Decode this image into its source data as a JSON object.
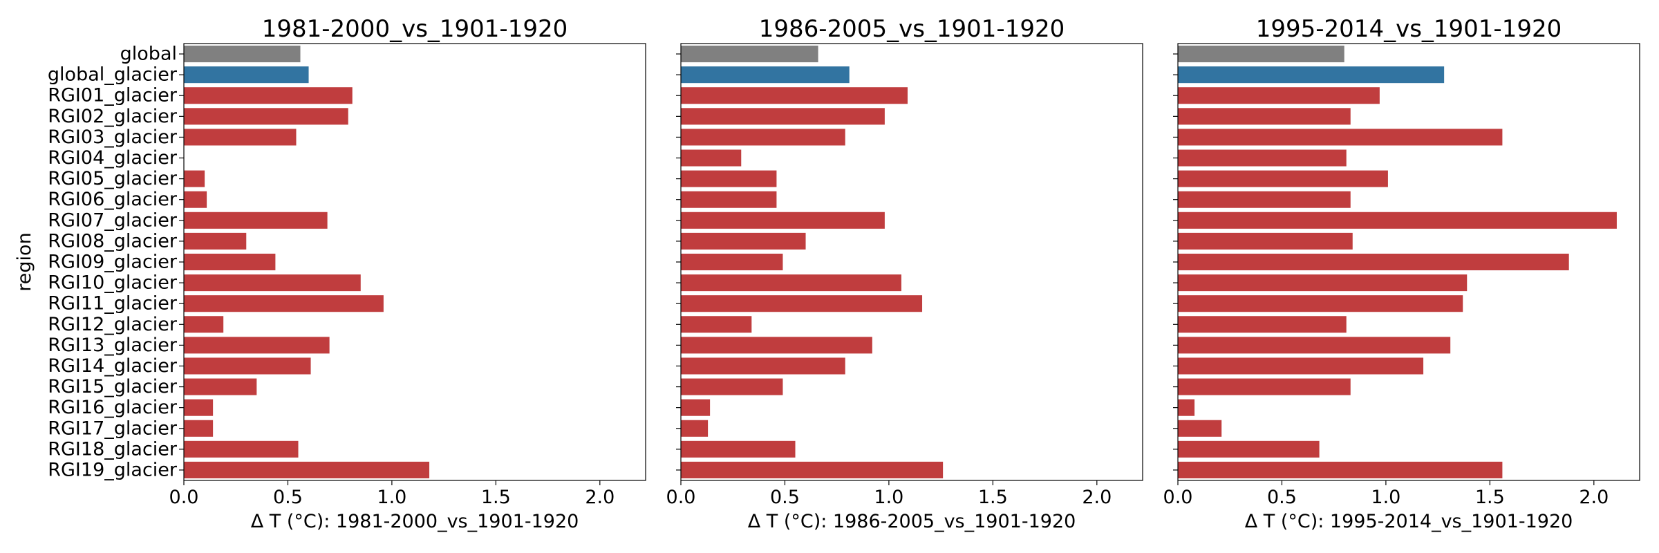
{
  "chart_data": [
    {
      "type": "bar",
      "orientation": "horizontal",
      "title": "1981-2000_vs_1901-1920",
      "xlabel": "Δ T (°C): 1981-2000_vs_1901-1920",
      "ylabel": "region",
      "xlim": [
        0,
        2.22
      ],
      "xticks": [
        "0.0",
        "0.5",
        "1.0",
        "1.5",
        "2.0"
      ],
      "grid": false,
      "categories": [
        "global",
        "global_glacier",
        "RGI01_glacier",
        "RGI02_glacier",
        "RGI03_glacier",
        "RGI04_glacier",
        "RGI05_glacier",
        "RGI06_glacier",
        "RGI07_glacier",
        "RGI08_glacier",
        "RGI09_glacier",
        "RGI10_glacier",
        "RGI11_glacier",
        "RGI12_glacier",
        "RGI13_glacier",
        "RGI14_glacier",
        "RGI15_glacier",
        "RGI16_glacier",
        "RGI17_glacier",
        "RGI18_glacier",
        "RGI19_glacier"
      ],
      "values": [
        0.56,
        0.6,
        0.81,
        0.79,
        0.54,
        0.0,
        0.1,
        0.11,
        0.69,
        0.3,
        0.44,
        0.85,
        0.96,
        0.19,
        0.7,
        0.61,
        0.35,
        0.14,
        0.14,
        0.55,
        1.18
      ]
    },
    {
      "type": "bar",
      "orientation": "horizontal",
      "title": "1986-2005_vs_1901-1920",
      "xlabel": "Δ T (°C): 1986-2005_vs_1901-1920",
      "ylabel": "",
      "xlim": [
        0,
        2.22
      ],
      "xticks": [
        "0.0",
        "0.5",
        "1.0",
        "1.5",
        "2.0"
      ],
      "grid": false,
      "categories": [
        "global",
        "global_glacier",
        "RGI01_glacier",
        "RGI02_glacier",
        "RGI03_glacier",
        "RGI04_glacier",
        "RGI05_glacier",
        "RGI06_glacier",
        "RGI07_glacier",
        "RGI08_glacier",
        "RGI09_glacier",
        "RGI10_glacier",
        "RGI11_glacier",
        "RGI12_glacier",
        "RGI13_glacier",
        "RGI14_glacier",
        "RGI15_glacier",
        "RGI16_glacier",
        "RGI17_glacier",
        "RGI18_glacier",
        "RGI19_glacier"
      ],
      "values": [
        0.66,
        0.81,
        1.09,
        0.98,
        0.79,
        0.29,
        0.46,
        0.46,
        0.98,
        0.6,
        0.49,
        1.06,
        1.16,
        0.34,
        0.92,
        0.79,
        0.49,
        0.14,
        0.13,
        0.55,
        1.26
      ]
    },
    {
      "type": "bar",
      "orientation": "horizontal",
      "title": "1995-2014_vs_1901-1920",
      "xlabel": "Δ T (°C): 1995-2014_vs_1901-1920",
      "ylabel": "",
      "xlim": [
        0,
        2.22
      ],
      "xticks": [
        "0.0",
        "0.5",
        "1.0",
        "1.5",
        "2.0"
      ],
      "grid": false,
      "categories": [
        "global",
        "global_glacier",
        "RGI01_glacier",
        "RGI02_glacier",
        "RGI03_glacier",
        "RGI04_glacier",
        "RGI05_glacier",
        "RGI06_glacier",
        "RGI07_glacier",
        "RGI08_glacier",
        "RGI09_glacier",
        "RGI10_glacier",
        "RGI11_glacier",
        "RGI12_glacier",
        "RGI13_glacier",
        "RGI14_glacier",
        "RGI15_glacier",
        "RGI16_glacier",
        "RGI17_glacier",
        "RGI18_glacier",
        "RGI19_glacier"
      ],
      "values": [
        0.8,
        1.28,
        0.97,
        0.83,
        1.56,
        0.81,
        1.01,
        0.83,
        2.11,
        0.84,
        1.88,
        1.39,
        1.37,
        0.81,
        1.31,
        1.18,
        0.83,
        0.08,
        0.21,
        0.68,
        1.56
      ]
    }
  ],
  "colors": {
    "global": "#808080",
    "global_glacier": "#3274a1",
    "regional": "#c03d3e"
  }
}
